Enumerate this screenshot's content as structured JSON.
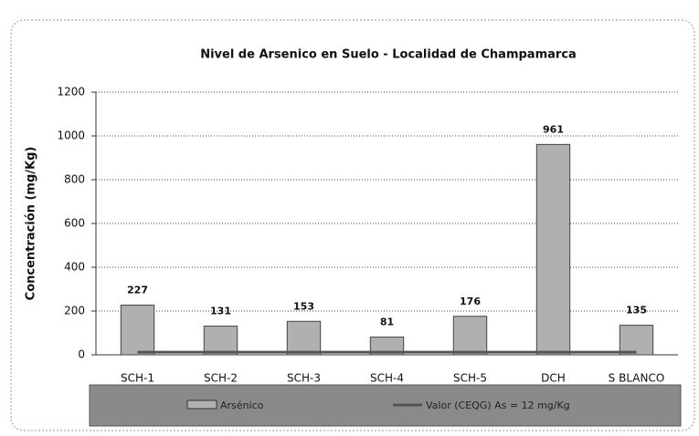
{
  "chart_data": {
    "type": "bar",
    "title": "Nivel de Arsenico en Suelo  -  Localidad de Champamarca",
    "ylabel": "Concentración (mg/Kg)",
    "categories": [
      "SCH-1",
      "SCH-2",
      "SCH-3",
      "SCH-4",
      "SCH-5",
      "DCH",
      "S BLANCO"
    ],
    "series": [
      {
        "name": "Arsénico",
        "type": "bar",
        "color": "#b0b0b0",
        "values": [
          227,
          131,
          153,
          81,
          176,
          961,
          135
        ]
      },
      {
        "name": "Valor (CEQG) As = 12 mg/Kg",
        "type": "line",
        "color": "#555555",
        "values": [
          12,
          12,
          12,
          12,
          12,
          12,
          12
        ]
      }
    ],
    "ylim": [
      0,
      1200
    ],
    "yticks": [
      0,
      200,
      400,
      600,
      800,
      1000,
      1200
    ],
    "grid": true
  }
}
